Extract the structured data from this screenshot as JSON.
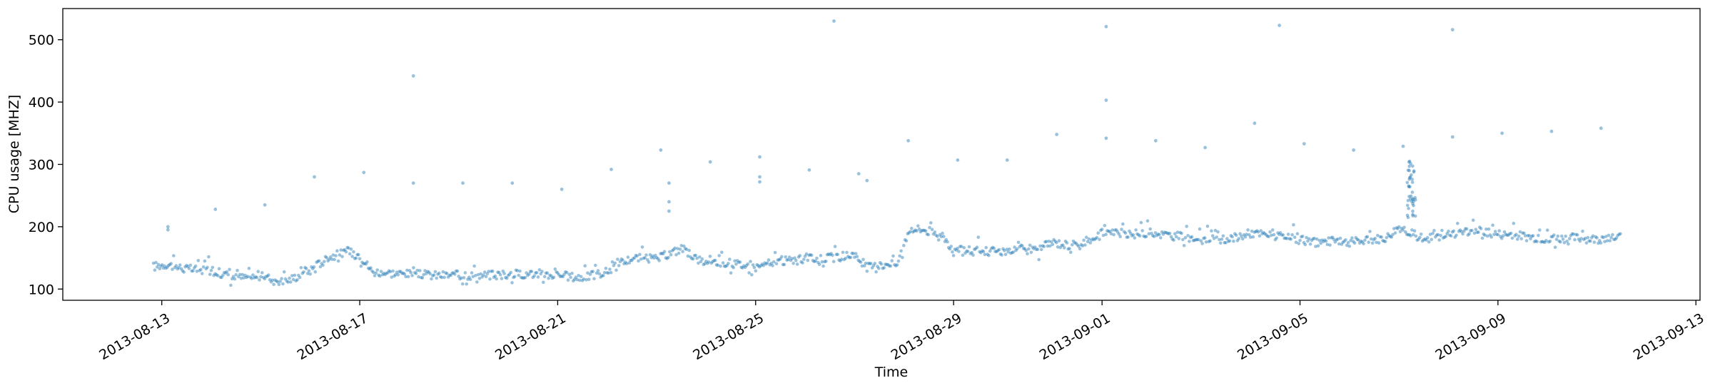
{
  "chart_data": {
    "type": "scatter",
    "title": "",
    "xlabel": "Time",
    "ylabel": "CPU usage [MHZ]",
    "xlim": [
      "2013-08-11T00:00",
      "2013-09-13T02:00"
    ],
    "ylim": [
      82,
      550
    ],
    "x_ticks": [
      "2013-08-13",
      "2013-08-17",
      "2013-08-21",
      "2013-08-25",
      "2013-08-29",
      "2013-09-01",
      "2013-09-05",
      "2013-09-09",
      "2013-09-13"
    ],
    "y_ticks": [
      100,
      200,
      300,
      400,
      500
    ],
    "grid": false,
    "marker_color": "#1f77b4",
    "marker_alpha": 0.45,
    "trend": [
      [
        "2013-08-12T20:00",
        136
      ],
      [
        "2013-08-13T02:00",
        140
      ],
      [
        "2013-08-13T12:00",
        132
      ],
      [
        "2013-08-14T00:00",
        130
      ],
      [
        "2013-08-14T12:00",
        118
      ],
      [
        "2013-08-15T00:00",
        120
      ],
      [
        "2013-08-15T12:00",
        112
      ],
      [
        "2013-08-16T00:00",
        130
      ],
      [
        "2013-08-16T08:00",
        150
      ],
      [
        "2013-08-16T18:00",
        160
      ],
      [
        "2013-08-17T00:00",
        155
      ],
      [
        "2013-08-17T06:00",
        128
      ],
      [
        "2013-08-17T18:00",
        125
      ],
      [
        "2013-08-18T12:00",
        122
      ],
      [
        "2013-08-19T12:00",
        122
      ],
      [
        "2013-08-20T12:00",
        125
      ],
      [
        "2013-08-21T00:00",
        122
      ],
      [
        "2013-08-21T12:00",
        118
      ],
      [
        "2013-08-22T00:00",
        128
      ],
      [
        "2013-08-22T12:00",
        150
      ],
      [
        "2013-08-23T00:00",
        148
      ],
      [
        "2013-08-23T12:00",
        165
      ],
      [
        "2013-08-24T00:00",
        140
      ],
      [
        "2013-08-24T12:00",
        142
      ],
      [
        "2013-08-25T00:00",
        135
      ],
      [
        "2013-08-25T12:00",
        145
      ],
      [
        "2013-08-26T12:00",
        150
      ],
      [
        "2013-08-27T00:00",
        155
      ],
      [
        "2013-08-27T06:00",
        135
      ],
      [
        "2013-08-27T20:00",
        140
      ],
      [
        "2013-08-28T03:00",
        198
      ],
      [
        "2013-08-28T18:00",
        190
      ],
      [
        "2013-08-29T00:00",
        162
      ],
      [
        "2013-08-30T00:00",
        160
      ],
      [
        "2013-08-30T18:00",
        165
      ],
      [
        "2013-08-31T00:00",
        175
      ],
      [
        "2013-08-31T12:00",
        168
      ],
      [
        "2013-09-01T00:00",
        192
      ],
      [
        "2013-09-01T12:00",
        188
      ],
      [
        "2013-09-02T00:00",
        190
      ],
      [
        "2013-09-02T12:00",
        185
      ],
      [
        "2013-09-03T00:00",
        180
      ],
      [
        "2013-09-03T12:00",
        178
      ],
      [
        "2013-09-04T00:00",
        190
      ],
      [
        "2013-09-04T12:00",
        185
      ],
      [
        "2013-09-05T00:00",
        178
      ],
      [
        "2013-09-05T12:00",
        176
      ],
      [
        "2013-09-06T00:00",
        175
      ],
      [
        "2013-09-06T18:00",
        182
      ],
      [
        "2013-09-07T00:00",
        200
      ],
      [
        "2013-09-07T12:00",
        180
      ],
      [
        "2013-09-08T00:00",
        188
      ],
      [
        "2013-09-08T12:00",
        195
      ],
      [
        "2013-09-09T00:00",
        188
      ],
      [
        "2013-09-09T12:00",
        185
      ],
      [
        "2013-09-10T00:00",
        180
      ],
      [
        "2013-09-10T12:00",
        182
      ],
      [
        "2013-09-11T00:00",
        180
      ],
      [
        "2013-09-11T12:00",
        184
      ]
    ],
    "outliers": [
      [
        "2013-08-13T03:00",
        200
      ],
      [
        "2013-08-13T03:00",
        195
      ],
      [
        "2013-08-14T02:00",
        228
      ],
      [
        "2013-08-15T02:00",
        235
      ],
      [
        "2013-08-16T02:00",
        280
      ],
      [
        "2013-08-17T02:00",
        287
      ],
      [
        "2013-08-18T02:00",
        442
      ],
      [
        "2013-08-18T02:00",
        270
      ],
      [
        "2013-08-19T02:00",
        270
      ],
      [
        "2013-08-20T02:00",
        270
      ],
      [
        "2013-08-21T02:00",
        260
      ],
      [
        "2013-08-22T02:00",
        292
      ],
      [
        "2013-08-23T02:00",
        323
      ],
      [
        "2013-08-23T06:00",
        270
      ],
      [
        "2013-08-23T06:00",
        240
      ],
      [
        "2013-08-23T06:00",
        225
      ],
      [
        "2013-08-24T02:00",
        304
      ],
      [
        "2013-08-25T02:00",
        312
      ],
      [
        "2013-08-25T02:00",
        280
      ],
      [
        "2013-08-25T02:00",
        272
      ],
      [
        "2013-08-26T02:00",
        291
      ],
      [
        "2013-08-26T14:00",
        530
      ],
      [
        "2013-08-27T02:00",
        285
      ],
      [
        "2013-08-27T06:00",
        274
      ],
      [
        "2013-08-28T02:00",
        338
      ],
      [
        "2013-08-29T02:00",
        307
      ],
      [
        "2013-08-30T02:00",
        307
      ],
      [
        "2013-08-31T02:00",
        348
      ],
      [
        "2013-09-01T02:00",
        521
      ],
      [
        "2013-09-01T02:00",
        403
      ],
      [
        "2013-09-01T02:00",
        342
      ],
      [
        "2013-09-02T02:00",
        338
      ],
      [
        "2013-09-03T02:00",
        327
      ],
      [
        "2013-09-04T02:00",
        366
      ],
      [
        "2013-09-04T14:00",
        523
      ],
      [
        "2013-09-05T02:00",
        333
      ],
      [
        "2013-09-06T02:00",
        323
      ],
      [
        "2013-09-07T02:00",
        329
      ],
      [
        "2013-09-08T02:00",
        516
      ],
      [
        "2013-09-08T02:00",
        344
      ],
      [
        "2013-09-09T02:00",
        350
      ],
      [
        "2013-09-10T02:00",
        353
      ],
      [
        "2013-09-11T02:00",
        358
      ]
    ],
    "spike": {
      "start": "2013-09-07T04:00",
      "end": "2013-09-07T08:00",
      "min": 210,
      "max": 305
    }
  }
}
